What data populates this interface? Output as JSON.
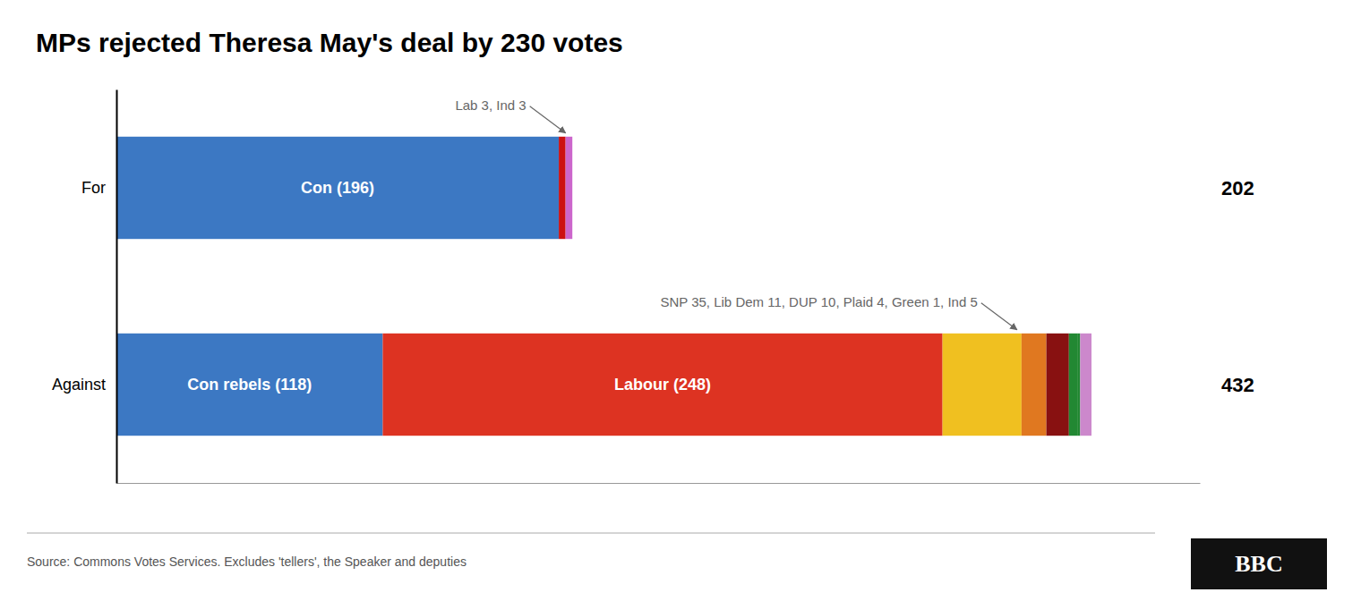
{
  "chart_data": {
    "type": "bar",
    "orientation": "horizontal",
    "stacked": true,
    "title": "MPs rejected Theresa May's deal by 230 votes",
    "categories": [
      "For",
      "Against"
    ],
    "series": [
      {
        "color": "#3c78c3",
        "values": [
          196,
          118
        ],
        "value_labels": [
          "Con (196)",
          "Con rebels (118)"
        ]
      },
      {
        "colors": [
          "#cc1111",
          "#dd3322"
        ],
        "values": [
          3,
          248
        ],
        "value_labels": [
          null,
          "Labour (248)"
        ]
      },
      {
        "colors": [
          "#cc66cc",
          "#f0c020"
        ],
        "values": [
          3,
          35
        ]
      },
      {
        "color": "#e07820",
        "values": [
          null,
          11
        ]
      },
      {
        "color": "#881111",
        "values": [
          null,
          10
        ]
      },
      {
        "color": "#228833",
        "values": [
          null,
          4
        ]
      },
      {
        "color": "#228833",
        "values": [
          null,
          1
        ]
      },
      {
        "color": "#cc88cc",
        "values": [
          null,
          5
        ]
      }
    ],
    "totals": [
      202,
      432
    ],
    "annotations": [
      "Lab 3, Ind 3",
      "SNP 35, Lib Dem 11, DUP 10, Plaid 4, Green 1, Ind 5"
    ],
    "xlim": [
      0,
      480
    ],
    "xticks": [],
    "tick_labels": "y",
    "grid": false,
    "data_labels": true,
    "source": "Source: Commons Votes Services. Excludes 'tellers', the Speaker and deputies",
    "logo": "BBC"
  }
}
